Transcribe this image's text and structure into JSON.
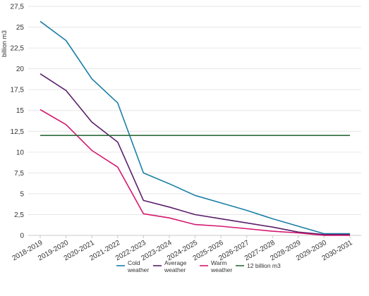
{
  "chart_data": {
    "type": "line",
    "ylabel": "billion m3",
    "ylim": [
      0,
      27.5
    ],
    "yticks": [
      "0",
      "2,5",
      "5",
      "7,5",
      "10",
      "12,5",
      "15",
      "17,5",
      "20",
      "22,5",
      "25",
      "27,5"
    ],
    "ytick_values": [
      0,
      2.5,
      5,
      7.5,
      10,
      12.5,
      15,
      17.5,
      20,
      22.5,
      25,
      27.5
    ],
    "categories": [
      "2018-2019",
      "2019-2020",
      "2020-2021",
      "2021-2022",
      "2022-2023",
      "2023-2024",
      "2024-2025",
      "2025-2026",
      "2026-2027",
      "2027-2028",
      "2028-2029",
      "2029-2030",
      "2030-2031"
    ],
    "grid": "horizontal",
    "legend_position": "bottom",
    "series": [
      {
        "name": "Cold weather",
        "legend_lines": [
          "Cold",
          "weather"
        ],
        "color": "#1a7fa6",
        "values": [
          25.7,
          23.4,
          18.8,
          15.9,
          7.5,
          6.2,
          4.8,
          3.9,
          3.0,
          2.0,
          1.1,
          0.2,
          0.2
        ]
      },
      {
        "name": "Average weather",
        "legend_lines": [
          "Average",
          "weather"
        ],
        "color": "#5a1f6b",
        "values": [
          19.4,
          17.4,
          13.6,
          11.2,
          4.2,
          3.4,
          2.5,
          2.0,
          1.5,
          1.0,
          0.4,
          0.1,
          0.1
        ]
      },
      {
        "name": "Warm weather",
        "legend_lines": [
          "Warm",
          "weather"
        ],
        "color": "#d4186f",
        "values": [
          15.1,
          13.3,
          10.2,
          8.2,
          2.6,
          2.1,
          1.3,
          1.1,
          0.8,
          0.5,
          0.3,
          0.0,
          0.0
        ]
      },
      {
        "name": "12 billion m3",
        "legend_lines": [
          "12 billion m3"
        ],
        "color": "#2e6b3a",
        "values": [
          12,
          12,
          12,
          12,
          12,
          12,
          12,
          12,
          12,
          12,
          12,
          12,
          12
        ]
      }
    ]
  }
}
